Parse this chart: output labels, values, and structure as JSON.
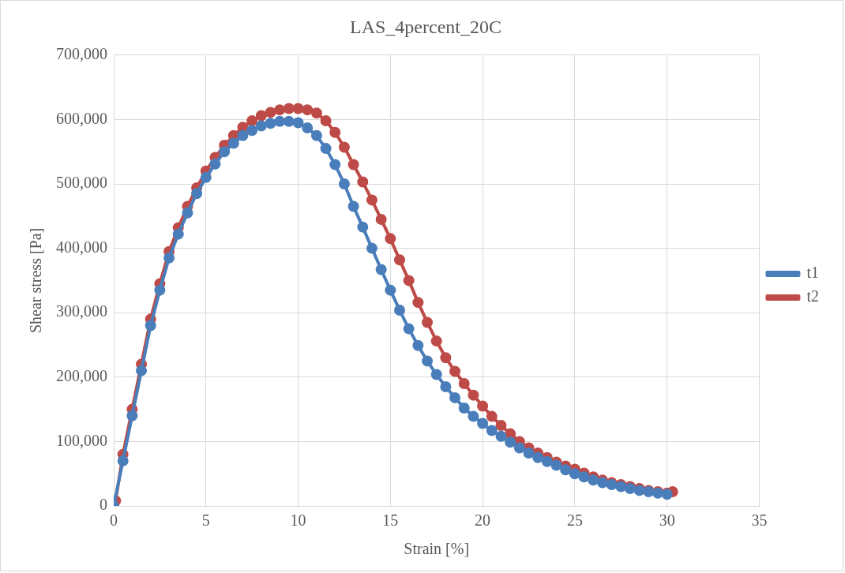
{
  "chart_data": {
    "type": "line",
    "title": "LAS_4percent_20C",
    "xlabel": "Strain [%]",
    "ylabel": "Shear stress [Pa]",
    "xlim": [
      0,
      35
    ],
    "xticks": [
      0,
      5,
      10,
      15,
      20,
      25,
      30,
      35
    ],
    "ylim": [
      0,
      700000
    ],
    "yticks": [
      0,
      {
        "value": 100000,
        "label": "100,000"
      },
      {
        "value": 200000,
        "label": "200,000"
      },
      {
        "value": 300000,
        "label": "300,000"
      },
      {
        "value": 400000,
        "label": "400,000"
      },
      {
        "value": 500000,
        "label": "500,000"
      },
      {
        "value": 600000,
        "label": "600,000"
      },
      {
        "value": 700000,
        "label": "700,000"
      }
    ],
    "grid": true,
    "legend": "right",
    "marker": "circle",
    "line_style": "solid",
    "series": [
      {
        "name": "t1",
        "color": "#4a7ebb",
        "x": [
          0,
          0.5,
          1,
          1.5,
          2,
          2.5,
          3,
          3.5,
          4,
          4.5,
          5,
          5.5,
          6,
          6.5,
          7,
          7.5,
          8,
          8.5,
          9,
          9.5,
          10,
          10.5,
          11,
          11.5,
          12,
          12.5,
          13,
          13.5,
          14,
          14.5,
          15,
          15.5,
          16,
          16.5,
          17,
          17.5,
          18,
          18.5,
          19,
          19.5,
          20,
          20.5,
          21,
          21.5,
          22,
          22.5,
          23,
          23.5,
          24,
          24.5,
          25,
          25.5,
          26,
          26.5,
          27,
          27.5,
          28,
          28.5,
          29,
          29.5,
          30
        ],
        "values": [
          0,
          70000,
          140000,
          210000,
          280000,
          335000,
          385000,
          422000,
          455000,
          485000,
          510000,
          531000,
          550000,
          563000,
          575000,
          583000,
          590000,
          594000,
          597000,
          597000,
          595000,
          587000,
          575000,
          555000,
          530000,
          500000,
          465000,
          433000,
          400000,
          367000,
          335000,
          304000,
          275000,
          249000,
          225000,
          204000,
          185000,
          168000,
          152000,
          139000,
          128000,
          117000,
          108000,
          99000,
          90000,
          82000,
          75000,
          69000,
          63000,
          56000,
          50000,
          45000,
          40000,
          36000,
          33000,
          30000,
          27000,
          24000,
          22000,
          20000,
          18000
        ]
      },
      {
        "name": "t2",
        "color": "#be4b48",
        "x": [
          0.1,
          0.5,
          1,
          1.5,
          2,
          2.5,
          3,
          3.5,
          4,
          4.5,
          5,
          5.5,
          6,
          6.5,
          7,
          7.5,
          8,
          8.5,
          9,
          9.5,
          10,
          10.5,
          11,
          11.5,
          12,
          12.5,
          13,
          13.5,
          14,
          14.5,
          15,
          15.5,
          16,
          16.5,
          17,
          17.5,
          18,
          18.5,
          19,
          19.5,
          20,
          20.5,
          21,
          21.5,
          22,
          22.5,
          23,
          23.5,
          24,
          24.5,
          25,
          25.5,
          26,
          26.5,
          27,
          27.5,
          28,
          28.5,
          29,
          29.5,
          30,
          30.3
        ],
        "values": [
          8000,
          80000,
          150000,
          220000,
          290000,
          345000,
          395000,
          432000,
          465000,
          494000,
          520000,
          541000,
          560000,
          575000,
          588000,
          598000,
          606000,
          611000,
          615000,
          617000,
          617000,
          615000,
          610000,
          598000,
          580000,
          557000,
          530000,
          503000,
          475000,
          445000,
          415000,
          382000,
          350000,
          316000,
          285000,
          256000,
          230000,
          209000,
          190000,
          172000,
          155000,
          139000,
          125000,
          112000,
          100000,
          90000,
          82000,
          75000,
          68000,
          62000,
          57000,
          51000,
          45000,
          40000,
          36000,
          33000,
          30000,
          27000,
          24000,
          22000,
          20000,
          22000
        ]
      }
    ]
  }
}
